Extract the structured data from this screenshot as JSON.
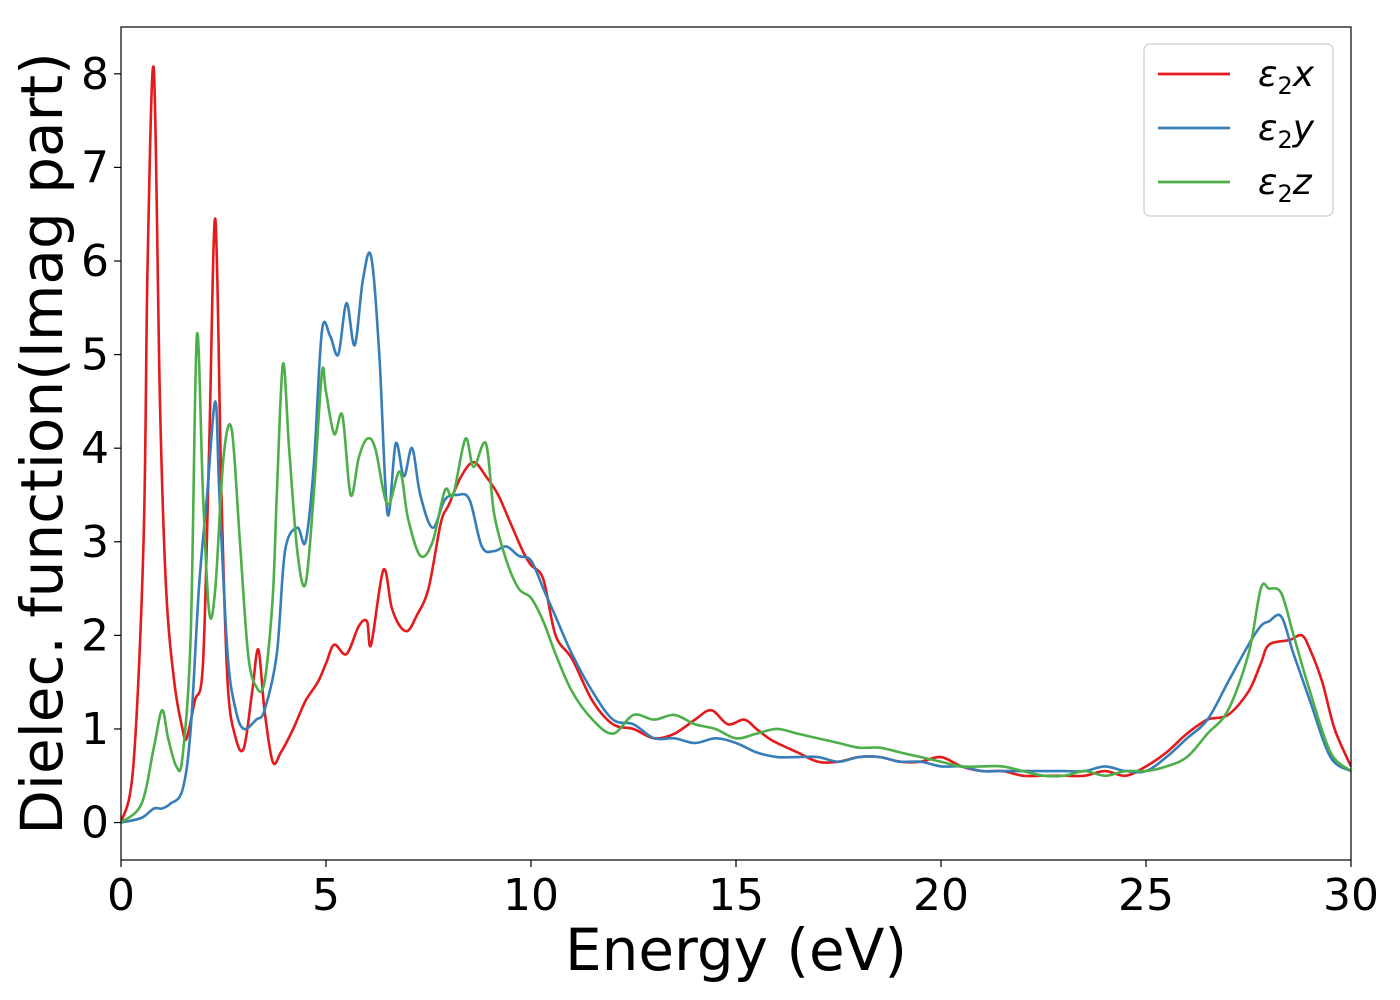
{
  "chart_data": {
    "type": "line",
    "xlabel": "Energy (eV)",
    "ylabel": "Dielec. function(Imag part)",
    "xlim": [
      0,
      30
    ],
    "ylim": [
      -0.4,
      8.5
    ],
    "xticks": [
      0,
      5,
      10,
      15,
      20,
      25,
      30
    ],
    "yticks": [
      0,
      1,
      2,
      3,
      4,
      5,
      6,
      7,
      8
    ],
    "grid": false,
    "legend_position": "top-right",
    "series": [
      {
        "name": "ε2x",
        "label_base": "ε",
        "label_sub": "2",
        "label_var": "x",
        "color": "#e41a1c",
        "x": [
          0,
          0.3,
          0.55,
          0.65,
          0.8,
          0.95,
          1.1,
          1.3,
          1.5,
          1.6,
          1.8,
          2.0,
          2.15,
          2.3,
          2.45,
          2.6,
          2.8,
          3.0,
          3.2,
          3.35,
          3.5,
          3.7,
          3.9,
          4.2,
          4.5,
          4.8,
          5.0,
          5.2,
          5.5,
          5.8,
          6.0,
          6.1,
          6.4,
          6.6,
          6.8,
          7.0,
          7.2,
          7.5,
          7.8,
          8.0,
          8.3,
          8.6,
          8.9,
          9.2,
          9.5,
          9.8,
          10.0,
          10.3,
          10.6,
          11.0,
          11.5,
          12.0,
          12.5,
          13.0,
          13.5,
          14.0,
          14.4,
          14.8,
          15.2,
          15.5,
          15.8,
          16.0,
          16.5,
          17.0,
          17.5,
          18.0,
          18.5,
          19.0,
          19.5,
          20.0,
          20.5,
          21.0,
          21.5,
          22.0,
          22.5,
          23.0,
          23.5,
          24.0,
          24.5,
          25.0,
          25.5,
          26.0,
          26.5,
          27.0,
          27.5,
          27.8,
          28.0,
          28.5,
          28.8,
          29.0,
          29.3,
          29.6,
          30.0
        ],
        "y": [
          0,
          0.6,
          3.0,
          6.0,
          8.05,
          4.5,
          2.5,
          1.5,
          1.0,
          0.9,
          1.3,
          1.7,
          4.0,
          6.45,
          3.5,
          1.5,
          0.9,
          0.8,
          1.4,
          1.85,
          1.2,
          0.65,
          0.75,
          1.0,
          1.3,
          1.5,
          1.7,
          1.9,
          1.8,
          2.1,
          2.15,
          1.9,
          2.7,
          2.3,
          2.1,
          2.05,
          2.2,
          2.5,
          3.2,
          3.4,
          3.7,
          3.85,
          3.7,
          3.5,
          3.2,
          2.9,
          2.75,
          2.6,
          2.0,
          1.75,
          1.3,
          1.05,
          1.0,
          0.9,
          0.95,
          1.1,
          1.2,
          1.05,
          1.1,
          1.0,
          0.9,
          0.85,
          0.75,
          0.65,
          0.65,
          0.7,
          0.7,
          0.65,
          0.65,
          0.7,
          0.6,
          0.55,
          0.55,
          0.5,
          0.5,
          0.5,
          0.5,
          0.55,
          0.5,
          0.6,
          0.75,
          0.95,
          1.1,
          1.15,
          1.4,
          1.7,
          1.9,
          1.95,
          2.0,
          1.85,
          1.5,
          1.0,
          0.6
        ]
      },
      {
        "name": "ε2y",
        "label_base": "ε",
        "label_sub": "2",
        "label_var": "y",
        "color": "#377eb8",
        "x": [
          0,
          0.5,
          0.8,
          1.0,
          1.2,
          1.5,
          1.7,
          1.9,
          2.1,
          2.3,
          2.4,
          2.6,
          2.8,
          3.0,
          3.3,
          3.5,
          3.8,
          4.0,
          4.3,
          4.5,
          4.7,
          4.9,
          5.1,
          5.3,
          5.5,
          5.7,
          5.9,
          6.1,
          6.3,
          6.5,
          6.7,
          6.9,
          7.1,
          7.3,
          7.6,
          7.9,
          8.2,
          8.5,
          8.8,
          9.1,
          9.4,
          9.7,
          10.0,
          10.3,
          10.6,
          11.0,
          11.5,
          12.0,
          12.5,
          13.0,
          13.5,
          14.0,
          14.5,
          15.0,
          15.5,
          16.0,
          16.5,
          17.0,
          17.5,
          18.0,
          18.5,
          19.0,
          19.5,
          20.0,
          20.5,
          21.0,
          21.5,
          22.0,
          22.5,
          23.0,
          23.5,
          24.0,
          24.5,
          25.0,
          25.5,
          26.0,
          26.5,
          27.0,
          27.5,
          27.8,
          28.0,
          28.3,
          28.6,
          29.0,
          29.5,
          30.0
        ],
        "y": [
          0,
          0.05,
          0.15,
          0.15,
          0.2,
          0.35,
          1.0,
          2.5,
          3.5,
          4.5,
          3.5,
          1.8,
          1.2,
          1.0,
          1.1,
          1.2,
          1.8,
          2.9,
          3.15,
          3.0,
          3.8,
          5.25,
          5.2,
          5.0,
          5.55,
          5.1,
          5.8,
          6.05,
          5.0,
          3.3,
          4.05,
          3.7,
          4.0,
          3.5,
          3.15,
          3.45,
          3.5,
          3.45,
          2.95,
          2.9,
          2.95,
          2.85,
          2.8,
          2.5,
          2.2,
          1.8,
          1.4,
          1.1,
          1.05,
          0.9,
          0.9,
          0.85,
          0.9,
          0.85,
          0.75,
          0.7,
          0.7,
          0.7,
          0.65,
          0.7,
          0.7,
          0.65,
          0.65,
          0.6,
          0.6,
          0.55,
          0.55,
          0.55,
          0.55,
          0.55,
          0.55,
          0.6,
          0.55,
          0.55,
          0.7,
          0.9,
          1.1,
          1.5,
          1.9,
          2.1,
          2.15,
          2.2,
          1.8,
          1.3,
          0.7,
          0.55
        ]
      },
      {
        "name": "ε2z",
        "label_base": "ε",
        "label_sub": "2",
        "label_var": "z",
        "color": "#4daf4a",
        "x": [
          0,
          0.5,
          0.8,
          1.0,
          1.15,
          1.35,
          1.5,
          1.7,
          1.85,
          2.0,
          2.15,
          2.3,
          2.5,
          2.7,
          2.9,
          3.1,
          3.3,
          3.5,
          3.7,
          3.8,
          3.95,
          4.1,
          4.3,
          4.5,
          4.7,
          4.9,
          5.0,
          5.2,
          5.4,
          5.6,
          5.8,
          6.0,
          6.2,
          6.5,
          6.8,
          7.0,
          7.3,
          7.6,
          7.9,
          8.1,
          8.4,
          8.6,
          8.9,
          9.1,
          9.4,
          9.7,
          10.0,
          10.3,
          10.6,
          11.0,
          11.5,
          12.0,
          12.5,
          13.0,
          13.5,
          14.0,
          14.5,
          15.0,
          15.5,
          16.0,
          16.5,
          17.0,
          17.5,
          18.0,
          18.5,
          19.0,
          19.5,
          20.0,
          20.5,
          21.0,
          21.5,
          22.0,
          22.5,
          23.0,
          23.5,
          24.0,
          24.5,
          25.0,
          25.5,
          26.0,
          26.5,
          27.0,
          27.5,
          27.8,
          28.0,
          28.3,
          28.6,
          29.0,
          29.5,
          30.0
        ],
        "y": [
          0,
          0.2,
          0.8,
          1.2,
          0.9,
          0.6,
          0.7,
          2.0,
          5.2,
          3.5,
          2.25,
          2.5,
          3.9,
          4.2,
          3.0,
          1.8,
          1.45,
          1.5,
          2.4,
          3.5,
          4.9,
          4.0,
          2.9,
          2.55,
          3.5,
          4.8,
          4.6,
          4.15,
          4.35,
          3.5,
          3.9,
          4.1,
          4.0,
          3.4,
          3.75,
          3.25,
          2.85,
          3.0,
          3.55,
          3.5,
          4.1,
          3.8,
          4.05,
          3.3,
          2.8,
          2.5,
          2.4,
          2.15,
          1.8,
          1.4,
          1.1,
          0.95,
          1.15,
          1.1,
          1.15,
          1.05,
          1.0,
          0.9,
          0.95,
          1.0,
          0.95,
          0.9,
          0.85,
          0.8,
          0.8,
          0.75,
          0.7,
          0.65,
          0.6,
          0.6,
          0.6,
          0.55,
          0.5,
          0.5,
          0.55,
          0.5,
          0.55,
          0.55,
          0.6,
          0.7,
          0.95,
          1.2,
          1.8,
          2.5,
          2.5,
          2.45,
          2.0,
          1.4,
          0.75,
          0.55
        ]
      }
    ]
  }
}
